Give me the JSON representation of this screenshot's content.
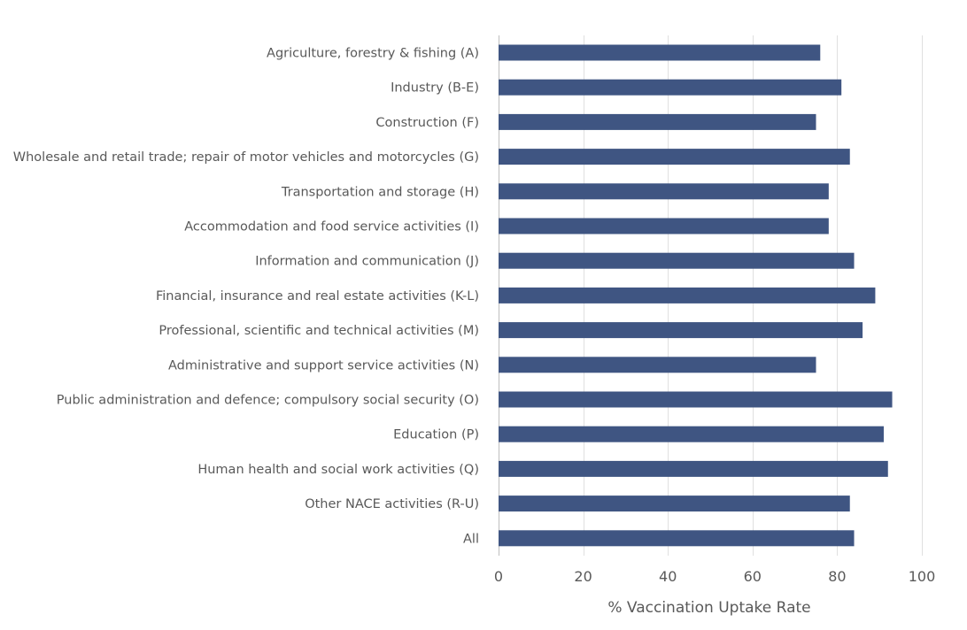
{
  "chart_data": {
    "type": "bar",
    "orientation": "horizontal",
    "title": "",
    "xlabel": "% Vaccination Uptake Rate",
    "ylabel": "",
    "xlim": [
      0,
      100
    ],
    "x_ticks": [
      0,
      20,
      40,
      60,
      80,
      100
    ],
    "grid": true,
    "legend": "none",
    "bar_color": "#3f5582",
    "categories": [
      "Agriculture, forestry & fishing (A)",
      "Industry (B-E)",
      "Construction (F)",
      "Wholesale and retail trade; repair of motor vehicles and motorcycles (G)",
      "Transportation and storage (H)",
      "Accommodation and food service activities (I)",
      "Information and communication (J)",
      "Financial, insurance and real estate activities (K-L)",
      "Professional, scientific and technical activities (M)",
      "Administrative and support service activities (N)",
      "Public administration and defence; compulsory social security (O)",
      "Education (P)",
      "Human health and social work activities (Q)",
      "Other NACE activities (R-U)",
      "All"
    ],
    "values": [
      76,
      81,
      75,
      83,
      78,
      78,
      84,
      89,
      86,
      75,
      93,
      91,
      92,
      83,
      84
    ]
  }
}
